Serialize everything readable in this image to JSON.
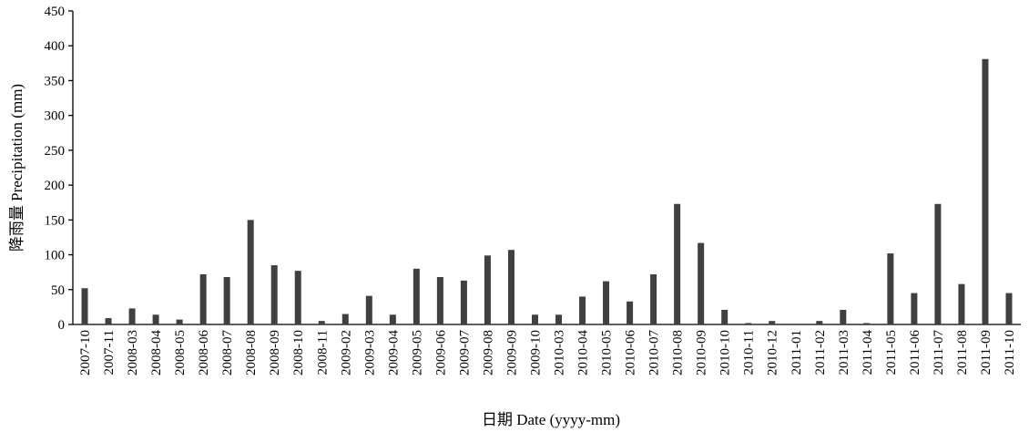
{
  "chart_data": {
    "type": "bar",
    "xlabel": "日期 Date (yyyy-mm)",
    "ylabel": "降雨量 Precipitation (mm)",
    "ylim": [
      0,
      450
    ],
    "yticks": [
      0,
      50,
      100,
      150,
      200,
      250,
      300,
      350,
      400,
      450
    ],
    "grid": false,
    "categories": [
      "2007-10",
      "2007-11",
      "2008-03",
      "2008-04",
      "2008-05",
      "2008-06",
      "2008-07",
      "2008-08",
      "2008-09",
      "2008-10",
      "2008-11",
      "2009-02",
      "2009-03",
      "2009-04",
      "2009-05",
      "2009-06",
      "2009-07",
      "2009-08",
      "2009-09",
      "2009-10",
      "2010-03",
      "2010-04",
      "2010-05",
      "2010-06",
      "2010-07",
      "2010-08",
      "2010-09",
      "2010-10",
      "2010-11",
      "2010-12",
      "2011-01",
      "2011-02",
      "2011-03",
      "2011-04",
      "2011-05",
      "2011-06",
      "2011-07",
      "2011-08",
      "2011-09",
      "2011-10"
    ],
    "values": [
      52,
      9,
      23,
      14,
      7,
      72,
      68,
      150,
      85,
      77,
      5,
      15,
      41,
      14,
      80,
      68,
      63,
      99,
      107,
      14,
      14,
      40,
      62,
      33,
      72,
      173,
      117,
      21,
      2,
      5,
      0,
      5,
      21,
      2,
      102,
      45,
      173,
      58,
      381,
      45
    ],
    "color": "#404040"
  }
}
